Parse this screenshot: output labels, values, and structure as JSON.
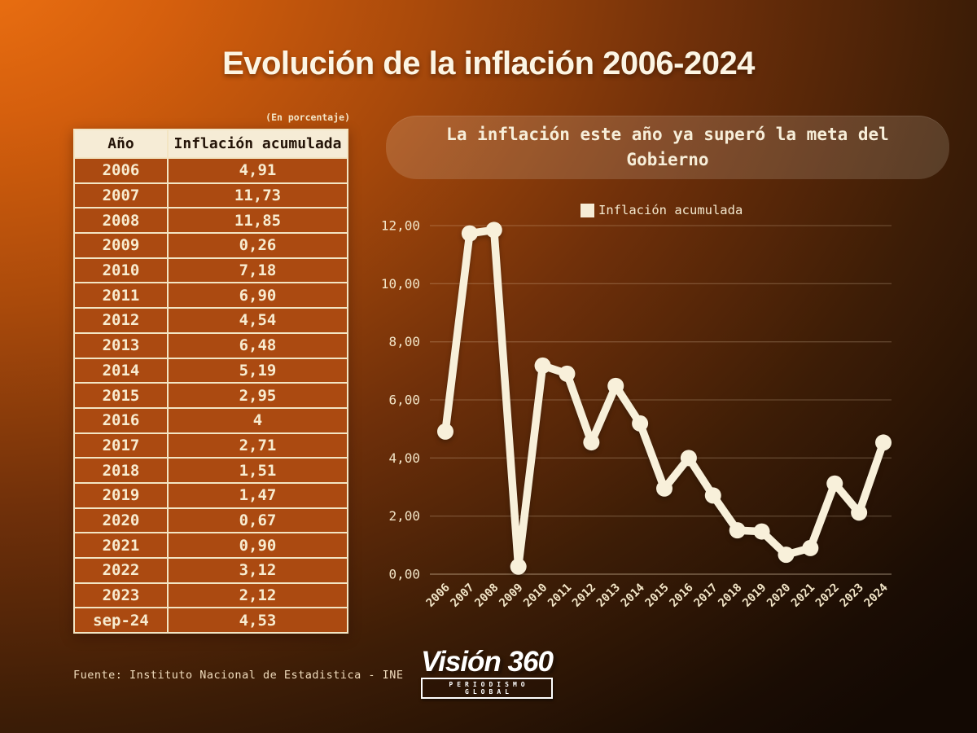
{
  "title": "Evolución de la inflación 2006-2024",
  "table": {
    "subtitle": "(En porcentaje)",
    "columns": {
      "year": "Año",
      "value": "Inflación acumulada"
    },
    "rows": [
      {
        "year": "2006",
        "value": "4,91"
      },
      {
        "year": "2007",
        "value": "11,73"
      },
      {
        "year": "2008",
        "value": "11,85"
      },
      {
        "year": "2009",
        "value": "0,26"
      },
      {
        "year": "2010",
        "value": "7,18"
      },
      {
        "year": "2011",
        "value": "6,90"
      },
      {
        "year": "2012",
        "value": "4,54"
      },
      {
        "year": "2013",
        "value": "6,48"
      },
      {
        "year": "2014",
        "value": "5,19"
      },
      {
        "year": "2015",
        "value": "2,95"
      },
      {
        "year": "2016",
        "value": "4"
      },
      {
        "year": "2017",
        "value": "2,71"
      },
      {
        "year": "2018",
        "value": "1,51"
      },
      {
        "year": "2019",
        "value": "1,47"
      },
      {
        "year": "2020",
        "value": "0,67"
      },
      {
        "year": "2021",
        "value": "0,90"
      },
      {
        "year": "2022",
        "value": "3,12"
      },
      {
        "year": "2023",
        "value": "2,12"
      },
      {
        "year": "sep-24",
        "value": "4,53"
      }
    ],
    "source": "Fuente: Instituto Nacional de Estadistica - INE"
  },
  "callout": {
    "text": "La inflación este año ya superó la meta del Gobierno"
  },
  "chart_data": {
    "type": "line",
    "title": "La inflación este año ya superó la meta del Gobierno",
    "legend": [
      "Inflación acumulada"
    ],
    "legend_position": "top",
    "categories": [
      "2006",
      "2007",
      "2008",
      "2009",
      "2010",
      "2011",
      "2012",
      "2013",
      "2014",
      "2015",
      "2016",
      "2017",
      "2018",
      "2019",
      "2020",
      "2021",
      "2022",
      "2023",
      "2024"
    ],
    "values": [
      4.91,
      11.73,
      11.85,
      0.26,
      7.18,
      6.9,
      4.54,
      6.48,
      5.19,
      2.95,
      4.0,
      2.71,
      1.51,
      1.47,
      0.67,
      0.9,
      3.12,
      2.12,
      4.53
    ],
    "xlabel": "",
    "ylabel": "",
    "ylim": [
      0,
      12
    ],
    "ytick_step": 2,
    "ytick_labels": [
      "0,00",
      "2,00",
      "4,00",
      "6,00",
      "8,00",
      "10,00",
      "12,00"
    ],
    "grid": true,
    "line_color": "#f8f0da",
    "grid_color": "rgba(250,228,195,0.22)",
    "axis_label_color": "#f3e6c8"
  },
  "logo": {
    "wordmark": "Visión 360",
    "tagline": "PERIODISMO GLOBAL"
  },
  "colors": {
    "background_top_left": "#f07312",
    "background_bottom_right": "#150a03",
    "table_row_bg": "#ab4a11",
    "table_header_bg": "#f6ecd6",
    "table_border": "#f3e5c3",
    "cream_text": "#f7ecd2",
    "line": "#f8f0da"
  }
}
